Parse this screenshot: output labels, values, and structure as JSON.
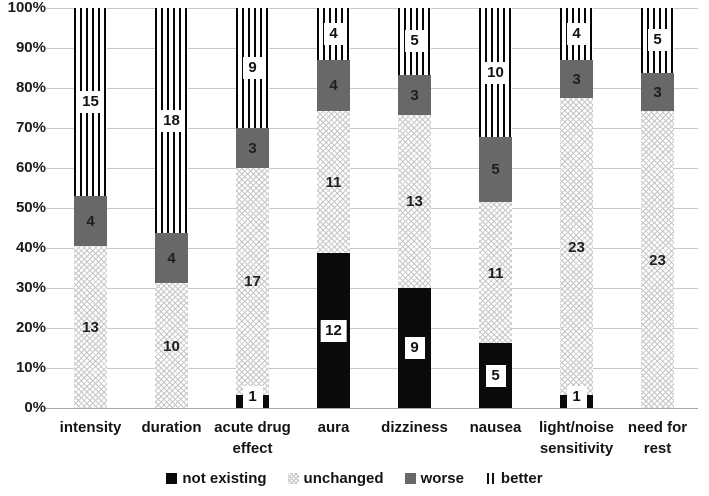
{
  "chart_data": {
    "type": "bar",
    "subtype": "stacked-100-percent",
    "title": "",
    "xlabel": "",
    "ylabel": "",
    "ylim": [
      0,
      100
    ],
    "grid": true,
    "legend_position": "bottom",
    "categories": [
      "intensity",
      "duration",
      "acute drug effect",
      "aura",
      "dizziness",
      "nausea",
      "light/noise sensitivity",
      "need for rest"
    ],
    "category_lines": [
      "intensity",
      "duration",
      "acute drug\neffect",
      "aura",
      "dizziness",
      "nausea",
      "light/noise\nsensitivity",
      "need for\nrest"
    ],
    "series": [
      {
        "name": "not existing",
        "style": "black",
        "labeled_box": true,
        "values": [
          0,
          0,
          1,
          12,
          9,
          5,
          1,
          0
        ]
      },
      {
        "name": "unchanged",
        "style": "dotted",
        "labeled_box": false,
        "values": [
          13,
          10,
          17,
          11,
          13,
          11,
          23,
          23
        ]
      },
      {
        "name": "worse",
        "style": "gray",
        "labeled_box": false,
        "values": [
          4,
          4,
          3,
          4,
          3,
          5,
          3,
          3
        ]
      },
      {
        "name": "better",
        "style": "stripes",
        "labeled_box": true,
        "values": [
          15,
          18,
          9,
          4,
          5,
          10,
          4,
          5
        ]
      }
    ],
    "y_ticks": [
      "100%",
      "90%",
      "80%",
      "70%",
      "60%",
      "50%",
      "40%",
      "30%",
      "20%",
      "10%",
      "0%"
    ]
  },
  "colors": {
    "not_existing": "#0a0a0a",
    "worse": "#686868",
    "pattern_line": "#c5c5c5",
    "stripe": "#060606",
    "gridline": "#c9c9c9",
    "axis_line": "#a6a6a6",
    "text": "#1a1a1a",
    "label_box_bg": "#ffffff"
  }
}
